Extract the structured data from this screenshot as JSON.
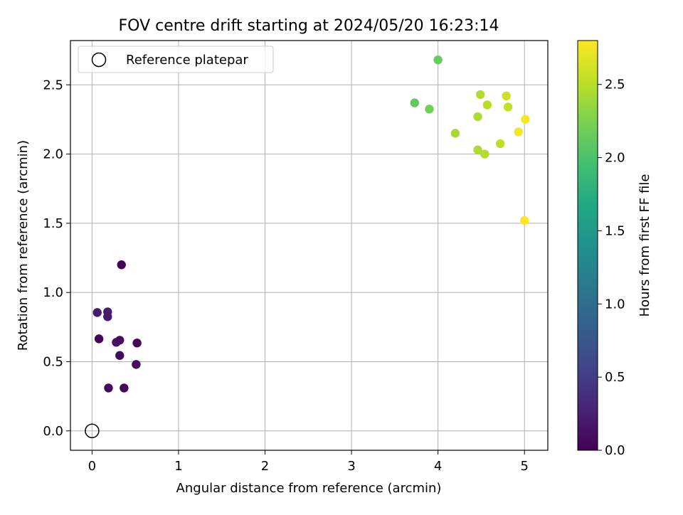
{
  "chart_data": {
    "type": "scatter",
    "title": "FOV centre drift starting at 2024/05/20 16:23:14",
    "xlabel": "Angular distance from reference (arcmin)",
    "ylabel": "Rotation from reference (arcmin)",
    "xlim": [
      -0.25,
      5.27
    ],
    "ylim": [
      -0.14,
      2.82
    ],
    "x_ticks": [
      0,
      1,
      2,
      3,
      4,
      5
    ],
    "x_tick_labels": [
      "0",
      "1",
      "2",
      "3",
      "4",
      "5"
    ],
    "y_ticks": [
      0.0,
      0.5,
      1.0,
      1.5,
      2.0,
      2.5
    ],
    "y_tick_labels": [
      "0.0",
      "0.5",
      "1.0",
      "1.5",
      "2.0",
      "2.5"
    ],
    "grid": true,
    "legend": {
      "placement": "upper-left",
      "entries": [
        "Reference platepar"
      ]
    },
    "reference_point": {
      "x": 0,
      "y": 0
    },
    "colorbar": {
      "label": "Hours from first FF file",
      "range": [
        0.0,
        2.8
      ],
      "ticks": [
        0.0,
        0.5,
        1.0,
        1.5,
        2.0,
        2.5
      ],
      "tick_labels": [
        "0.0",
        "0.5",
        "1.0",
        "1.5",
        "2.0",
        "2.5"
      ],
      "colormap": "viridis"
    },
    "points": [
      {
        "x": 0.34,
        "y": 1.2,
        "c": 0.02
      },
      {
        "x": 0.06,
        "y": 0.855,
        "c": 0.2
      },
      {
        "x": 0.18,
        "y": 0.86,
        "c": 0.22
      },
      {
        "x": 0.18,
        "y": 0.825,
        "c": 0.2
      },
      {
        "x": 0.08,
        "y": 0.665,
        "c": 0.05
      },
      {
        "x": 0.28,
        "y": 0.64,
        "c": 0.15
      },
      {
        "x": 0.32,
        "y": 0.655,
        "c": 0.1
      },
      {
        "x": 0.52,
        "y": 0.635,
        "c": 0.04
      },
      {
        "x": 0.32,
        "y": 0.545,
        "c": 0.08
      },
      {
        "x": 0.51,
        "y": 0.48,
        "c": 0.1
      },
      {
        "x": 0.19,
        "y": 0.31,
        "c": 0.06
      },
      {
        "x": 0.37,
        "y": 0.31,
        "c": 0.04
      },
      {
        "x": 4.0,
        "y": 2.68,
        "c": 2.15
      },
      {
        "x": 3.73,
        "y": 2.37,
        "c": 2.12
      },
      {
        "x": 3.9,
        "y": 2.325,
        "c": 2.2
      },
      {
        "x": 4.49,
        "y": 2.43,
        "c": 2.48
      },
      {
        "x": 4.79,
        "y": 2.42,
        "c": 2.58
      },
      {
        "x": 4.57,
        "y": 2.355,
        "c": 2.5
      },
      {
        "x": 4.81,
        "y": 2.34,
        "c": 2.55
      },
      {
        "x": 4.46,
        "y": 2.27,
        "c": 2.45
      },
      {
        "x": 5.01,
        "y": 2.25,
        "c": 2.78
      },
      {
        "x": 4.2,
        "y": 2.15,
        "c": 2.42
      },
      {
        "x": 4.93,
        "y": 2.16,
        "c": 2.75
      },
      {
        "x": 4.72,
        "y": 2.075,
        "c": 2.52
      },
      {
        "x": 4.46,
        "y": 2.03,
        "c": 2.45
      },
      {
        "x": 4.54,
        "y": 2.0,
        "c": 2.48
      },
      {
        "x": 5.0,
        "y": 1.52,
        "c": 2.8
      }
    ]
  }
}
